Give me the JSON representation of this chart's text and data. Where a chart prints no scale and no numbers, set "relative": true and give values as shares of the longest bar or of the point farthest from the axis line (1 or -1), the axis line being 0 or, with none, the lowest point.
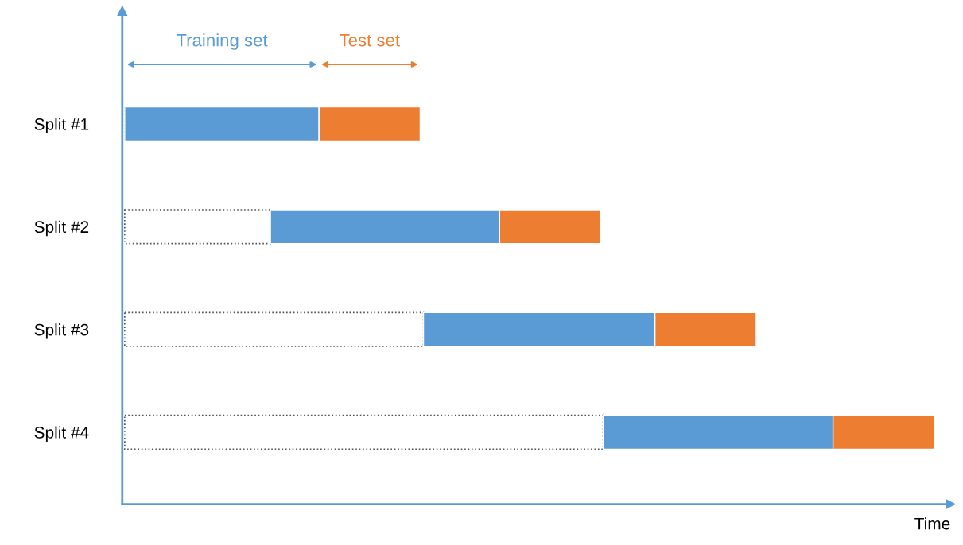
{
  "chart_data": {
    "type": "bar",
    "orientation": "horizontal",
    "stacked": true,
    "relative": true,
    "xlabel": "Time",
    "tick_labels": "y",
    "categories": [
      "Split #1",
      "Split #2",
      "Split #3",
      "Split #4"
    ],
    "series": [
      {
        "color": "#ffffff",
        "line_style": "dotted",
        "values": [
          0,
          0.18,
          0.369,
          0.591
        ]
      },
      {
        "name": "Training set",
        "color": "#5b9bd5",
        "values": [
          0.24,
          0.283,
          0.286,
          0.284
        ]
      },
      {
        "name": "Test set",
        "color": "#ed7d31",
        "values": [
          0.125,
          0.125,
          0.125,
          0.125
        ]
      }
    ]
  }
}
